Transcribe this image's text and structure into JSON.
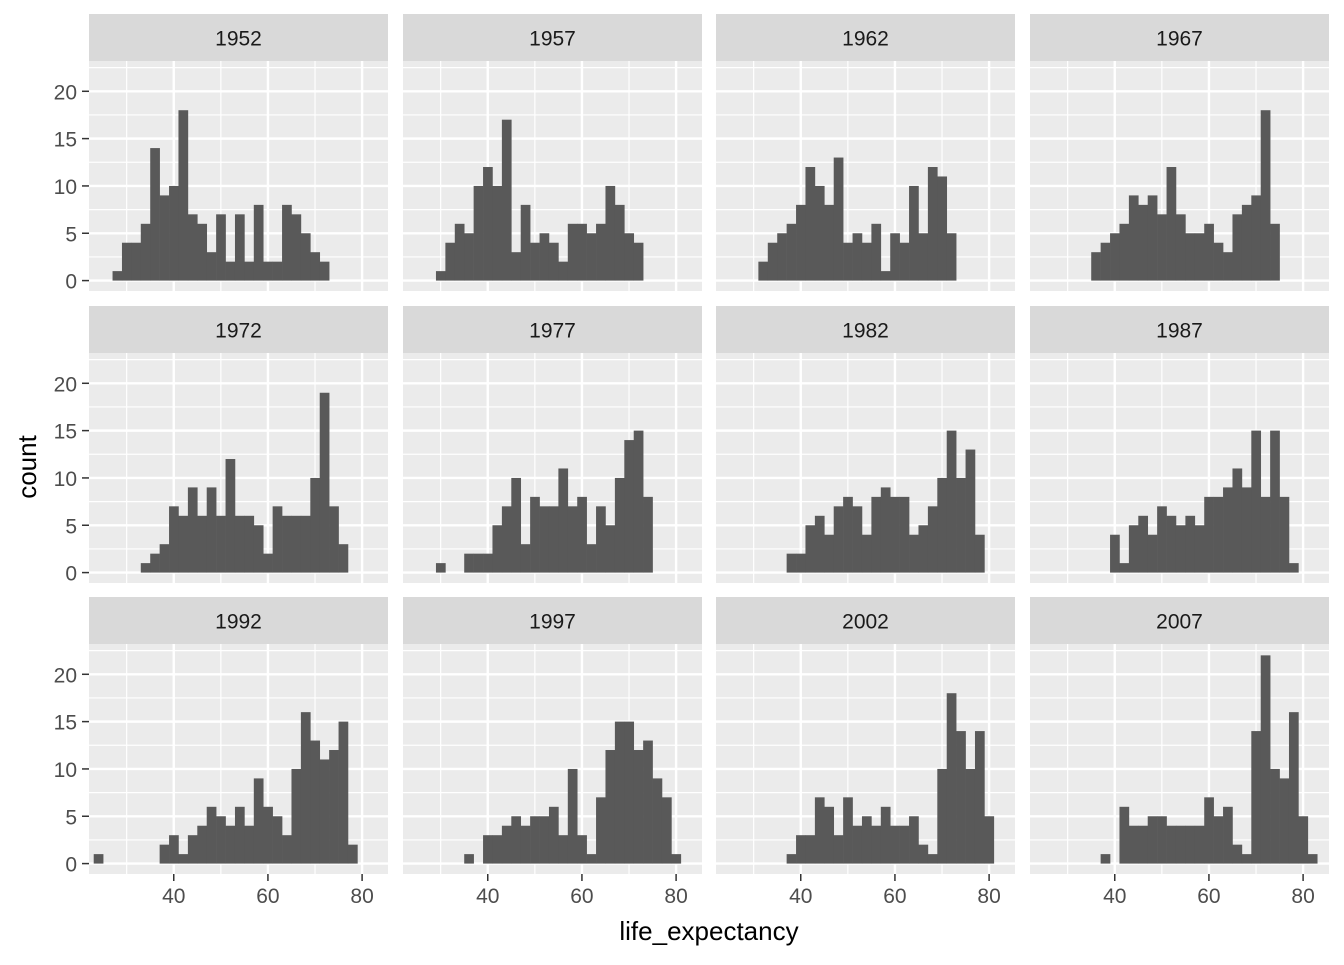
{
  "chart_data": {
    "type": "bar",
    "layout": "facet-grid",
    "x_label": "life_expectancy",
    "y_label": "count",
    "x_ticks": [
      40,
      60,
      80
    ],
    "y_ticks": [
      0,
      5,
      10,
      15,
      20
    ],
    "xlim": [
      22,
      85.5
    ],
    "ylim": [
      -1.1,
      23.2
    ],
    "bin_width": 2,
    "grid": true,
    "colors": {
      "bar": "#595959",
      "panel_bg": "#ebebeb",
      "strip_bg": "#d9d9d9",
      "grid": "#ffffff",
      "text": "#4d4d4d",
      "title_text": "#000000"
    },
    "panels": [
      {
        "year": "1952",
        "bins": [
          {
            "x": 28,
            "count": 1
          },
          {
            "x": 30,
            "count": 4
          },
          {
            "x": 32,
            "count": 4
          },
          {
            "x": 34,
            "count": 6
          },
          {
            "x": 36,
            "count": 14
          },
          {
            "x": 38,
            "count": 9
          },
          {
            "x": 40,
            "count": 10
          },
          {
            "x": 42,
            "count": 18
          },
          {
            "x": 44,
            "count": 7
          },
          {
            "x": 46,
            "count": 6
          },
          {
            "x": 48,
            "count": 3
          },
          {
            "x": 50,
            "count": 7
          },
          {
            "x": 52,
            "count": 2
          },
          {
            "x": 54,
            "count": 7
          },
          {
            "x": 56,
            "count": 2
          },
          {
            "x": 58,
            "count": 8
          },
          {
            "x": 60,
            "count": 2
          },
          {
            "x": 62,
            "count": 2
          },
          {
            "x": 64,
            "count": 8
          },
          {
            "x": 66,
            "count": 7
          },
          {
            "x": 68,
            "count": 5
          },
          {
            "x": 70,
            "count": 3
          },
          {
            "x": 72,
            "count": 2
          }
        ]
      },
      {
        "year": "1957",
        "bins": [
          {
            "x": 30,
            "count": 1
          },
          {
            "x": 32,
            "count": 4
          },
          {
            "x": 34,
            "count": 6
          },
          {
            "x": 36,
            "count": 5
          },
          {
            "x": 38,
            "count": 10
          },
          {
            "x": 40,
            "count": 12
          },
          {
            "x": 42,
            "count": 10
          },
          {
            "x": 44,
            "count": 17
          },
          {
            "x": 46,
            "count": 3
          },
          {
            "x": 48,
            "count": 8
          },
          {
            "x": 50,
            "count": 4
          },
          {
            "x": 52,
            "count": 5
          },
          {
            "x": 54,
            "count": 4
          },
          {
            "x": 56,
            "count": 2
          },
          {
            "x": 58,
            "count": 6
          },
          {
            "x": 60,
            "count": 6
          },
          {
            "x": 62,
            "count": 5
          },
          {
            "x": 64,
            "count": 6
          },
          {
            "x": 66,
            "count": 10
          },
          {
            "x": 68,
            "count": 8
          },
          {
            "x": 70,
            "count": 5
          },
          {
            "x": 72,
            "count": 4
          }
        ]
      },
      {
        "year": "1962",
        "bins": [
          {
            "x": 32,
            "count": 2
          },
          {
            "x": 34,
            "count": 4
          },
          {
            "x": 36,
            "count": 5
          },
          {
            "x": 38,
            "count": 6
          },
          {
            "x": 40,
            "count": 8
          },
          {
            "x": 42,
            "count": 12
          },
          {
            "x": 44,
            "count": 10
          },
          {
            "x": 46,
            "count": 8
          },
          {
            "x": 48,
            "count": 13
          },
          {
            "x": 50,
            "count": 4
          },
          {
            "x": 52,
            "count": 5
          },
          {
            "x": 54,
            "count": 4
          },
          {
            "x": 56,
            "count": 6
          },
          {
            "x": 58,
            "count": 1
          },
          {
            "x": 60,
            "count": 5
          },
          {
            "x": 62,
            "count": 4
          },
          {
            "x": 64,
            "count": 10
          },
          {
            "x": 66,
            "count": 5
          },
          {
            "x": 68,
            "count": 12
          },
          {
            "x": 70,
            "count": 11
          },
          {
            "x": 72,
            "count": 5
          }
        ]
      },
      {
        "year": "1967",
        "bins": [
          {
            "x": 36,
            "count": 3
          },
          {
            "x": 38,
            "count": 4
          },
          {
            "x": 40,
            "count": 5
          },
          {
            "x": 42,
            "count": 6
          },
          {
            "x": 44,
            "count": 9
          },
          {
            "x": 46,
            "count": 8
          },
          {
            "x": 48,
            "count": 9
          },
          {
            "x": 50,
            "count": 7
          },
          {
            "x": 52,
            "count": 12
          },
          {
            "x": 54,
            "count": 7
          },
          {
            "x": 56,
            "count": 5
          },
          {
            "x": 58,
            "count": 5
          },
          {
            "x": 60,
            "count": 6
          },
          {
            "x": 62,
            "count": 4
          },
          {
            "x": 64,
            "count": 3
          },
          {
            "x": 66,
            "count": 7
          },
          {
            "x": 68,
            "count": 8
          },
          {
            "x": 70,
            "count": 9
          },
          {
            "x": 72,
            "count": 18
          },
          {
            "x": 74,
            "count": 6
          }
        ]
      },
      {
        "year": "1972",
        "bins": [
          {
            "x": 34,
            "count": 1
          },
          {
            "x": 36,
            "count": 2
          },
          {
            "x": 38,
            "count": 3
          },
          {
            "x": 40,
            "count": 7
          },
          {
            "x": 42,
            "count": 6
          },
          {
            "x": 44,
            "count": 9
          },
          {
            "x": 46,
            "count": 6
          },
          {
            "x": 48,
            "count": 9
          },
          {
            "x": 50,
            "count": 6
          },
          {
            "x": 52,
            "count": 12
          },
          {
            "x": 54,
            "count": 6
          },
          {
            "x": 56,
            "count": 6
          },
          {
            "x": 58,
            "count": 5
          },
          {
            "x": 60,
            "count": 2
          },
          {
            "x": 62,
            "count": 7
          },
          {
            "x": 64,
            "count": 6
          },
          {
            "x": 66,
            "count": 6
          },
          {
            "x": 68,
            "count": 6
          },
          {
            "x": 70,
            "count": 10
          },
          {
            "x": 72,
            "count": 19
          },
          {
            "x": 74,
            "count": 7
          },
          {
            "x": 76,
            "count": 3
          }
        ]
      },
      {
        "year": "1977",
        "bins": [
          {
            "x": 30,
            "count": 1
          },
          {
            "x": 36,
            "count": 2
          },
          {
            "x": 38,
            "count": 2
          },
          {
            "x": 40,
            "count": 2
          },
          {
            "x": 42,
            "count": 5
          },
          {
            "x": 44,
            "count": 7
          },
          {
            "x": 46,
            "count": 10
          },
          {
            "x": 48,
            "count": 3
          },
          {
            "x": 50,
            "count": 8
          },
          {
            "x": 52,
            "count": 7
          },
          {
            "x": 54,
            "count": 7
          },
          {
            "x": 56,
            "count": 11
          },
          {
            "x": 58,
            "count": 7
          },
          {
            "x": 60,
            "count": 8
          },
          {
            "x": 62,
            "count": 3
          },
          {
            "x": 64,
            "count": 7
          },
          {
            "x": 66,
            "count": 5
          },
          {
            "x": 68,
            "count": 10
          },
          {
            "x": 70,
            "count": 14
          },
          {
            "x": 72,
            "count": 15
          },
          {
            "x": 74,
            "count": 8
          }
        ]
      },
      {
        "year": "1982",
        "bins": [
          {
            "x": 38,
            "count": 2
          },
          {
            "x": 40,
            "count": 2
          },
          {
            "x": 42,
            "count": 5
          },
          {
            "x": 44,
            "count": 6
          },
          {
            "x": 46,
            "count": 4
          },
          {
            "x": 48,
            "count": 7
          },
          {
            "x": 50,
            "count": 8
          },
          {
            "x": 52,
            "count": 7
          },
          {
            "x": 54,
            "count": 4
          },
          {
            "x": 56,
            "count": 8
          },
          {
            "x": 58,
            "count": 9
          },
          {
            "x": 60,
            "count": 8
          },
          {
            "x": 62,
            "count": 8
          },
          {
            "x": 64,
            "count": 4
          },
          {
            "x": 66,
            "count": 5
          },
          {
            "x": 68,
            "count": 7
          },
          {
            "x": 70,
            "count": 10
          },
          {
            "x": 72,
            "count": 15
          },
          {
            "x": 74,
            "count": 10
          },
          {
            "x": 76,
            "count": 13
          },
          {
            "x": 78,
            "count": 4
          }
        ]
      },
      {
        "year": "1987",
        "bins": [
          {
            "x": 40,
            "count": 4
          },
          {
            "x": 42,
            "count": 1
          },
          {
            "x": 44,
            "count": 5
          },
          {
            "x": 46,
            "count": 6
          },
          {
            "x": 48,
            "count": 4
          },
          {
            "x": 50,
            "count": 7
          },
          {
            "x": 52,
            "count": 6
          },
          {
            "x": 54,
            "count": 5
          },
          {
            "x": 56,
            "count": 6
          },
          {
            "x": 58,
            "count": 5
          },
          {
            "x": 60,
            "count": 8
          },
          {
            "x": 62,
            "count": 8
          },
          {
            "x": 64,
            "count": 9
          },
          {
            "x": 66,
            "count": 11
          },
          {
            "x": 68,
            "count": 9
          },
          {
            "x": 70,
            "count": 15
          },
          {
            "x": 72,
            "count": 8
          },
          {
            "x": 74,
            "count": 15
          },
          {
            "x": 76,
            "count": 8
          },
          {
            "x": 78,
            "count": 1
          }
        ]
      },
      {
        "year": "1992",
        "bins": [
          {
            "x": 24,
            "count": 1
          },
          {
            "x": 38,
            "count": 2
          },
          {
            "x": 40,
            "count": 3
          },
          {
            "x": 42,
            "count": 1
          },
          {
            "x": 44,
            "count": 3
          },
          {
            "x": 46,
            "count": 4
          },
          {
            "x": 48,
            "count": 6
          },
          {
            "x": 50,
            "count": 5
          },
          {
            "x": 52,
            "count": 4
          },
          {
            "x": 54,
            "count": 6
          },
          {
            "x": 56,
            "count": 4
          },
          {
            "x": 58,
            "count": 9
          },
          {
            "x": 60,
            "count": 6
          },
          {
            "x": 62,
            "count": 5
          },
          {
            "x": 64,
            "count": 3
          },
          {
            "x": 66,
            "count": 10
          },
          {
            "x": 68,
            "count": 16
          },
          {
            "x": 70,
            "count": 13
          },
          {
            "x": 72,
            "count": 11
          },
          {
            "x": 74,
            "count": 12
          },
          {
            "x": 76,
            "count": 15
          },
          {
            "x": 78,
            "count": 2
          }
        ]
      },
      {
        "year": "1997",
        "bins": [
          {
            "x": 36,
            "count": 1
          },
          {
            "x": 40,
            "count": 3
          },
          {
            "x": 42,
            "count": 3
          },
          {
            "x": 44,
            "count": 4
          },
          {
            "x": 46,
            "count": 5
          },
          {
            "x": 48,
            "count": 4
          },
          {
            "x": 50,
            "count": 5
          },
          {
            "x": 52,
            "count": 5
          },
          {
            "x": 54,
            "count": 6
          },
          {
            "x": 56,
            "count": 3
          },
          {
            "x": 58,
            "count": 10
          },
          {
            "x": 60,
            "count": 3
          },
          {
            "x": 62,
            "count": 1
          },
          {
            "x": 64,
            "count": 7
          },
          {
            "x": 66,
            "count": 12
          },
          {
            "x": 68,
            "count": 15
          },
          {
            "x": 70,
            "count": 15
          },
          {
            "x": 72,
            "count": 12
          },
          {
            "x": 74,
            "count": 13
          },
          {
            "x": 76,
            "count": 9
          },
          {
            "x": 78,
            "count": 7
          },
          {
            "x": 80,
            "count": 1
          }
        ]
      },
      {
        "year": "2002",
        "bins": [
          {
            "x": 38,
            "count": 1
          },
          {
            "x": 40,
            "count": 3
          },
          {
            "x": 42,
            "count": 3
          },
          {
            "x": 44,
            "count": 7
          },
          {
            "x": 46,
            "count": 6
          },
          {
            "x": 48,
            "count": 3
          },
          {
            "x": 50,
            "count": 7
          },
          {
            "x": 52,
            "count": 4
          },
          {
            "x": 54,
            "count": 5
          },
          {
            "x": 56,
            "count": 4
          },
          {
            "x": 58,
            "count": 6
          },
          {
            "x": 60,
            "count": 4
          },
          {
            "x": 62,
            "count": 4
          },
          {
            "x": 64,
            "count": 5
          },
          {
            "x": 66,
            "count": 2
          },
          {
            "x": 68,
            "count": 1
          },
          {
            "x": 70,
            "count": 10
          },
          {
            "x": 72,
            "count": 18
          },
          {
            "x": 74,
            "count": 14
          },
          {
            "x": 76,
            "count": 10
          },
          {
            "x": 78,
            "count": 14
          },
          {
            "x": 80,
            "count": 5
          }
        ]
      },
      {
        "year": "2007",
        "bins": [
          {
            "x": 38,
            "count": 1
          },
          {
            "x": 42,
            "count": 6
          },
          {
            "x": 44,
            "count": 4
          },
          {
            "x": 46,
            "count": 4
          },
          {
            "x": 48,
            "count": 5
          },
          {
            "x": 50,
            "count": 5
          },
          {
            "x": 52,
            "count": 4
          },
          {
            "x": 54,
            "count": 4
          },
          {
            "x": 56,
            "count": 4
          },
          {
            "x": 58,
            "count": 4
          },
          {
            "x": 60,
            "count": 7
          },
          {
            "x": 62,
            "count": 5
          },
          {
            "x": 64,
            "count": 6
          },
          {
            "x": 66,
            "count": 2
          },
          {
            "x": 68,
            "count": 1
          },
          {
            "x": 70,
            "count": 14
          },
          {
            "x": 72,
            "count": 22
          },
          {
            "x": 74,
            "count": 10
          },
          {
            "x": 76,
            "count": 9
          },
          {
            "x": 78,
            "count": 16
          },
          {
            "x": 80,
            "count": 5
          },
          {
            "x": 82,
            "count": 1
          }
        ]
      }
    ]
  }
}
